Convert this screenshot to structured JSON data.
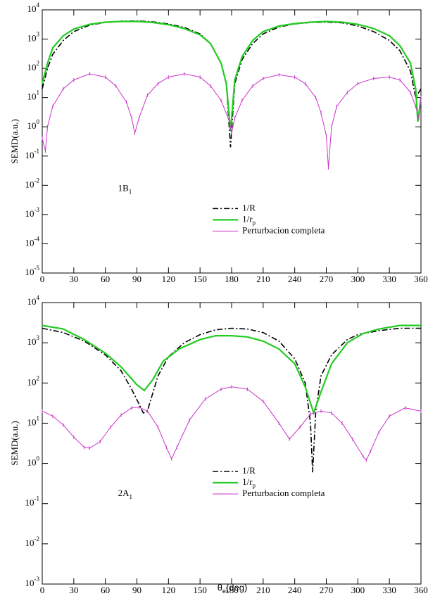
{
  "chart_data": [
    {
      "type": "line",
      "ylabel": "SEMD(a.u.)",
      "annotation": "1B_1",
      "log_y": true,
      "legend": "center",
      "xlim": [
        0,
        360
      ],
      "xticks": [
        0,
        30,
        60,
        90,
        120,
        150,
        180,
        210,
        240,
        270,
        300,
        330,
        360
      ],
      "ylim": [
        1e-05,
        10000
      ],
      "yticks": [
        {
          "value": 1e-05,
          "label": "10^-5"
        },
        {
          "value": 0.0001,
          "label": "10^-4"
        },
        {
          "value": 0.001,
          "label": "10^-3"
        },
        {
          "value": 0.01,
          "label": "10^-2"
        },
        {
          "value": 0.1,
          "label": "10^-1"
        },
        {
          "value": 1,
          "label": "10^0"
        },
        {
          "value": 10,
          "label": "10^1"
        },
        {
          "value": 100,
          "label": "10^2"
        },
        {
          "value": 1000,
          "label": "10^3"
        },
        {
          "value": 10000,
          "label": "10^4"
        }
      ],
      "series": [
        {
          "name": "1/R",
          "color": "#000000",
          "dash": "dashdot",
          "x": [
            0,
            5,
            10,
            20,
            30,
            45,
            60,
            75,
            90,
            105,
            120,
            135,
            150,
            160,
            170,
            175,
            179,
            183,
            190,
            200,
            210,
            225,
            240,
            255,
            270,
            285,
            300,
            315,
            330,
            340,
            350,
            355,
            360
          ],
          "values": [
            20,
            100,
            300,
            900,
            1800,
            3000,
            3700,
            4100,
            4200,
            3900,
            3300,
            2500,
            1500,
            700,
            150,
            30,
            0.2,
            30,
            200,
            700,
            1500,
            2600,
            3300,
            3700,
            3800,
            3600,
            2800,
            1800,
            900,
            400,
            80,
            10,
            20
          ]
        },
        {
          "name": "1/r_p",
          "color": "#22cc22",
          "dash": "solid",
          "x": [
            0,
            5,
            10,
            20,
            30,
            45,
            60,
            75,
            90,
            105,
            120,
            135,
            150,
            160,
            170,
            175,
            179,
            183,
            190,
            200,
            210,
            225,
            240,
            255,
            270,
            285,
            300,
            315,
            330,
            340,
            350,
            355,
            357,
            360
          ],
          "values": [
            30,
            150,
            500,
            1300,
            2200,
            3200,
            3800,
            4000,
            4000,
            3700,
            3100,
            2300,
            1400,
            700,
            150,
            30,
            0.7,
            40,
            250,
            900,
            1800,
            2800,
            3400,
            3800,
            4000,
            3800,
            3200,
            2300,
            1300,
            600,
            150,
            20,
            1.5,
            10
          ]
        },
        {
          "name": "Perturbacion completa",
          "color": "#cc33cc",
          "dash": "solid",
          "markers": true,
          "x": [
            0,
            3,
            5,
            10,
            20,
            30,
            45,
            60,
            70,
            80,
            85,
            88,
            92,
            100,
            110,
            120,
            135,
            150,
            160,
            170,
            178,
            180,
            183,
            190,
            200,
            210,
            225,
            240,
            250,
            260,
            265,
            270,
            272,
            275,
            280,
            290,
            300,
            315,
            330,
            340,
            350,
            355,
            358,
            360
          ],
          "values": [
            0.4,
            0.15,
            1,
            5,
            20,
            40,
            65,
            50,
            25,
            7,
            2,
            0.6,
            2,
            12,
            30,
            50,
            65,
            50,
            25,
            8,
            1.5,
            0.6,
            2,
            8,
            25,
            45,
            60,
            50,
            30,
            10,
            3,
            0.5,
            0.04,
            1,
            5,
            15,
            30,
            45,
            50,
            40,
            15,
            5,
            2,
            10
          ]
        }
      ]
    },
    {
      "type": "line",
      "ylabel": "SEMD(a.u.)",
      "xlabel": "θ_e(deg)",
      "annotation": "2A_1",
      "log_y": true,
      "legend": "center",
      "xlim": [
        0,
        360
      ],
      "xticks": [
        0,
        30,
        60,
        90,
        120,
        150,
        180,
        210,
        240,
        270,
        300,
        330,
        360
      ],
      "ylim": [
        0.001,
        10000
      ],
      "yticks": [
        {
          "value": 0.001,
          "label": "10^-3"
        },
        {
          "value": 0.01,
          "label": "10^-2"
        },
        {
          "value": 0.1,
          "label": "10^-1"
        },
        {
          "value": 1,
          "label": "10^0"
        },
        {
          "value": 10,
          "label": "10^1"
        },
        {
          "value": 100,
          "label": "10^2"
        },
        {
          "value": 1000,
          "label": "10^3"
        },
        {
          "value": 10000,
          "label": "10^4"
        }
      ],
      "series": [
        {
          "name": "1/R",
          "color": "#000000",
          "dash": "dashdot",
          "x": [
            0,
            20,
            40,
            60,
            75,
            85,
            92,
            96,
            100,
            110,
            120,
            135,
            150,
            165,
            180,
            195,
            210,
            225,
            240,
            250,
            255,
            257,
            260,
            265,
            275,
            290,
            300,
            320,
            340,
            360
          ],
          "values": [
            2300,
            1800,
            1100,
            500,
            200,
            70,
            30,
            18,
            20,
            150,
            450,
            1000,
            1600,
            2100,
            2300,
            2200,
            1800,
            1100,
            400,
            100,
            10,
            0.6,
            20,
            150,
            500,
            1200,
            1600,
            2000,
            2300,
            2300
          ]
        },
        {
          "name": "1/r_p",
          "color": "#22cc22",
          "dash": "solid",
          "x": [
            0,
            20,
            40,
            60,
            75,
            90,
            97,
            105,
            115,
            130,
            150,
            165,
            180,
            195,
            210,
            225,
            240,
            250,
            258,
            265,
            275,
            290,
            305,
            320,
            340,
            360
          ],
          "values": [
            2700,
            2200,
            1200,
            550,
            250,
            90,
            65,
            120,
            350,
            700,
            1200,
            1500,
            1500,
            1400,
            1100,
            700,
            300,
            80,
            18,
            60,
            300,
            1000,
            1700,
            2200,
            2700,
            2700
          ]
        },
        {
          "name": "Perturbacion completa",
          "color": "#cc33cc",
          "dash": "solid",
          "markers": true,
          "x": [
            0,
            10,
            20,
            30,
            40,
            45,
            55,
            65,
            75,
            85,
            92,
            100,
            110,
            118,
            123,
            128,
            140,
            155,
            170,
            180,
            195,
            210,
            225,
            235,
            245,
            255,
            265,
            275,
            285,
            295,
            305,
            308,
            312,
            320,
            330,
            345,
            360
          ],
          "values": [
            20,
            15,
            9,
            4.5,
            2.5,
            2.4,
            3.5,
            8,
            16,
            24,
            25,
            20,
            8,
            2.5,
            1.3,
            2.5,
            12,
            40,
            70,
            80,
            70,
            35,
            10,
            4,
            8,
            17,
            20,
            18,
            10,
            4,
            1.5,
            1.2,
            2,
            6,
            15,
            24,
            20
          ]
        }
      ]
    }
  ]
}
